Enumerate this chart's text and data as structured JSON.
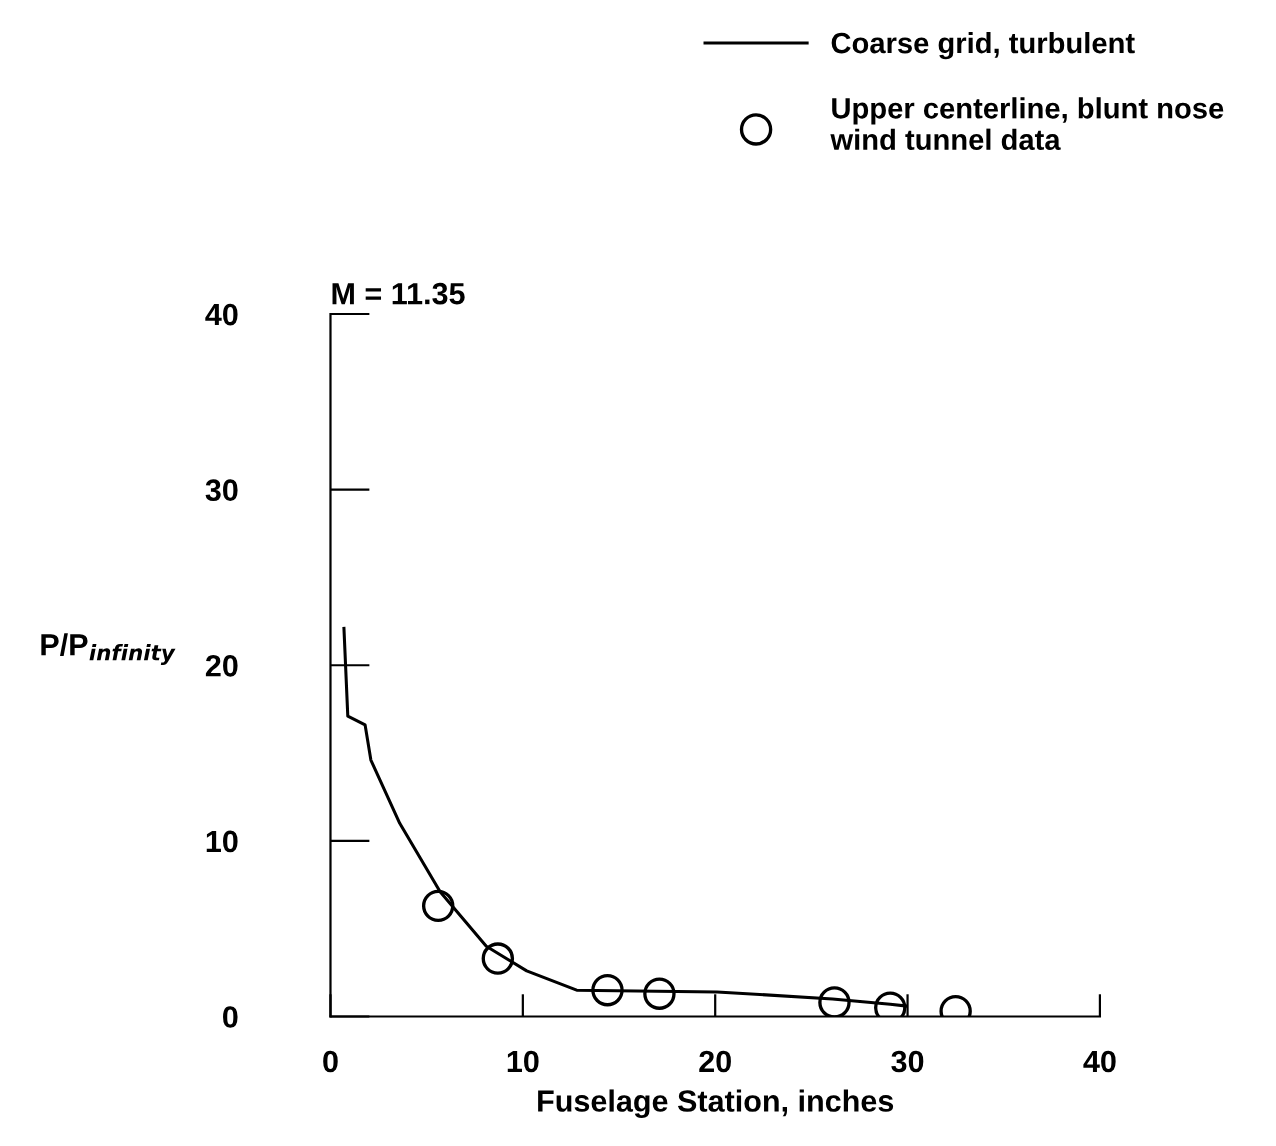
{
  "chart_data": {
    "type": "line",
    "xlabel": "Fuselage Station, inches",
    "ylabel": "P/P$_{infinity}$",
    "annotations": [
      "M = 11.35"
    ],
    "xlim": [
      0,
      40
    ],
    "ylim": [
      0,
      40
    ],
    "xticks": [
      0,
      10,
      20,
      30,
      40
    ],
    "yticks": [
      0,
      10,
      20,
      30,
      40
    ],
    "grid": false,
    "legend": "top right",
    "series": [
      {
        "name": "Coarse grid, turbulent",
        "color": "#000000",
        "marker": "none",
        "line_style": "solid",
        "x": [
          0.7,
          0.9,
          1.8,
          2.1,
          3.6,
          5.7,
          8.1,
          10.2,
          12.8,
          20.1,
          26.1,
          29.1,
          29.9
        ],
        "values": [
          22.1,
          17.1,
          16.6,
          14.6,
          11.0,
          7.1,
          4.0,
          2.6,
          1.5,
          1.4,
          1.0,
          0.7,
          0.6
        ]
      },
      {
        "name": "Upper centerline, blunt nose\nwind tunnel data",
        "type": "scatter",
        "color": "#000000",
        "marker": "circle",
        "x": [
          5.6,
          8.7,
          14.4,
          17.1,
          26.2,
          29.1,
          32.5
        ],
        "values": [
          6.3,
          3.3,
          1.5,
          1.3,
          0.8,
          0.5,
          0.3
        ]
      }
    ]
  }
}
